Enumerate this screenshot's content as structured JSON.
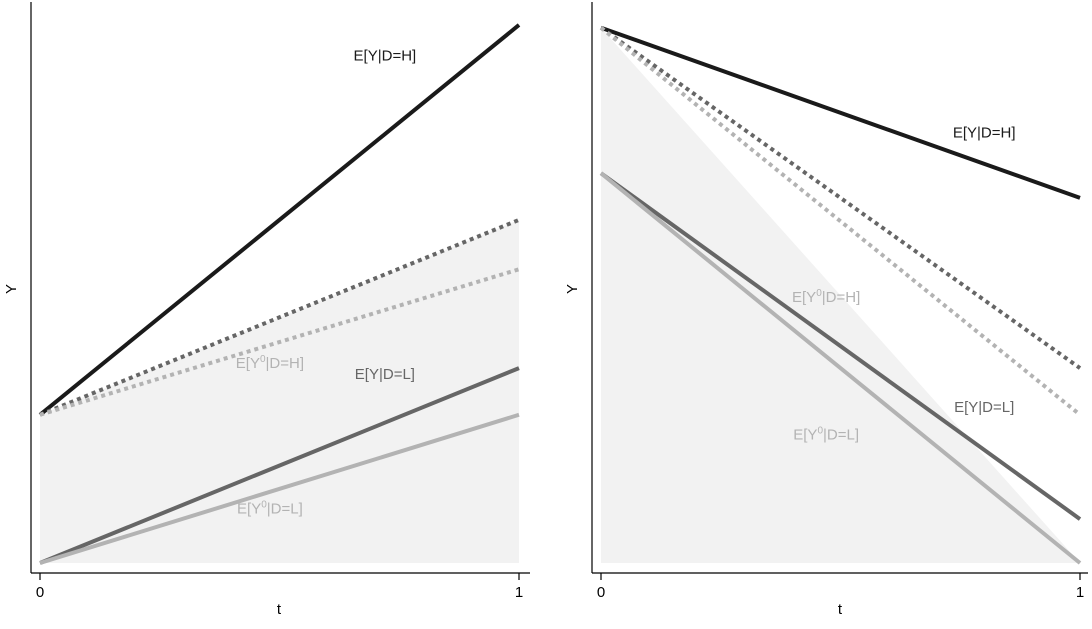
{
  "chart_data": [
    {
      "type": "line",
      "panel": "left",
      "xlabel": "t",
      "ylabel": "Y",
      "x_ticks": [
        "0",
        "1"
      ],
      "xlim": [
        0,
        1
      ],
      "ylim": [
        0,
        1
      ],
      "shaded_region": {
        "x": [
          0,
          1
        ],
        "y_low": 0.0,
        "y_high_start": 0.27,
        "y_high_end": 0.625,
        "color": "#f2f2f2"
      },
      "series": [
        {
          "label": "E[Y|D=H]",
          "x": [
            0,
            1
          ],
          "y": [
            0.27,
            0.98
          ],
          "color": "#1a1a1a",
          "style": "solid"
        },
        {
          "x": [
            0,
            1
          ],
          "y": [
            0.27,
            0.625
          ],
          "color": "#666666",
          "style": "dotted"
        },
        {
          "label_parts": [
            "E[Y",
            "0",
            "|D=H]"
          ],
          "x": [
            0,
            1
          ],
          "y": [
            0.27,
            0.535
          ],
          "color": "#b3b3b3",
          "style": "dotted"
        },
        {
          "label": "E[Y|D=L]",
          "x": [
            0,
            1
          ],
          "y": [
            0.0,
            0.355
          ],
          "color": "#666666",
          "style": "solid"
        },
        {
          "label_parts": [
            "E[Y",
            "0",
            "|D=L]"
          ],
          "x": [
            0,
            1
          ],
          "y": [
            0.0,
            0.27
          ],
          "color": "#b3b3b3",
          "style": "solid"
        }
      ],
      "labels": [
        {
          "series": 0,
          "x": 0.72,
          "y": 0.915,
          "color": "#1a1a1a"
        },
        {
          "series": 2,
          "x": 0.48,
          "y": 0.355,
          "color": "#b3b3b3"
        },
        {
          "series": 3,
          "x": 0.72,
          "y": 0.335,
          "color": "#666666"
        },
        {
          "series": 4,
          "x": 0.48,
          "y": 0.09,
          "color": "#b3b3b3"
        }
      ]
    },
    {
      "type": "line",
      "panel": "right",
      "xlabel": "t",
      "ylabel": "Y",
      "x_ticks": [
        "0",
        "1"
      ],
      "xlim": [
        0,
        1
      ],
      "ylim": [
        0,
        1
      ],
      "shaded_region": {
        "x": [
          0,
          1
        ],
        "y_low": 0.0,
        "y_high_start": 0.975,
        "y_high_end": 0.0,
        "color": "#f2f2f2"
      },
      "series": [
        {
          "label": "E[Y|D=H]",
          "x": [
            0,
            1
          ],
          "y": [
            0.975,
            0.665
          ],
          "color": "#1a1a1a",
          "style": "solid"
        },
        {
          "x": [
            0,
            1
          ],
          "y": [
            0.975,
            0.355
          ],
          "color": "#666666",
          "style": "dotted"
        },
        {
          "label_parts": [
            "E[Y",
            "0",
            "|D=H]"
          ],
          "x": [
            0,
            1
          ],
          "y": [
            0.975,
            0.27
          ],
          "color": "#b3b3b3",
          "style": "dotted"
        },
        {
          "label": "E[Y|D=L]",
          "x": [
            0,
            1
          ],
          "y": [
            0.71,
            0.08
          ],
          "color": "#666666",
          "style": "solid"
        },
        {
          "label_parts": [
            "E[Y",
            "0",
            "|D=L]"
          ],
          "x": [
            0,
            1
          ],
          "y": [
            0.71,
            0.0
          ],
          "color": "#b3b3b3",
          "style": "solid"
        }
      ],
      "labels": [
        {
          "series": 0,
          "x": 0.8,
          "y": 0.775,
          "color": "#1a1a1a"
        },
        {
          "series": 2,
          "x": 0.47,
          "y": 0.475,
          "color": "#b3b3b3"
        },
        {
          "series": 3,
          "x": 0.8,
          "y": 0.275,
          "color": "#666666"
        },
        {
          "series": 4,
          "x": 0.47,
          "y": 0.225,
          "color": "#b3b3b3"
        }
      ]
    }
  ]
}
